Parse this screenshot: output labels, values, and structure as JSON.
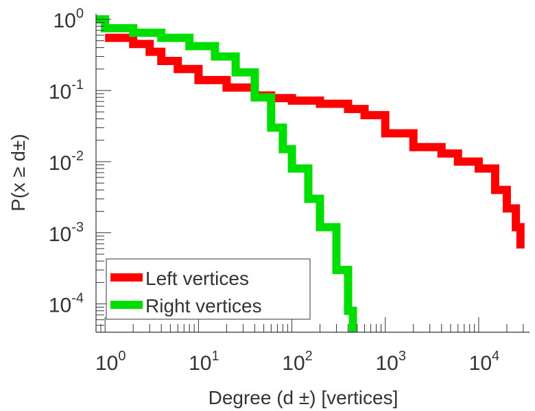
{
  "chart_data": {
    "type": "line",
    "xscale": "log",
    "yscale": "log",
    "xlim": [
      0.8,
      35000
    ],
    "ylim": [
      4e-05,
      1.2
    ],
    "xlabel": "Degree (d ±) [vertices]",
    "ylabel": "P(x ≥ d±)",
    "x_ticks": [
      {
        "value": 1,
        "base": "10",
        "exp": "0"
      },
      {
        "value": 10,
        "base": "10",
        "exp": "1"
      },
      {
        "value": 100,
        "base": "10",
        "exp": "2"
      },
      {
        "value": 1000,
        "base": "10",
        "exp": "3"
      },
      {
        "value": 10000,
        "base": "10",
        "exp": "4"
      }
    ],
    "y_ticks": [
      {
        "value": 1,
        "base": "10",
        "exp": "0"
      },
      {
        "value": 0.1,
        "base": "10",
        "exp": "-1"
      },
      {
        "value": 0.01,
        "base": "10",
        "exp": "-2"
      },
      {
        "value": 0.001,
        "base": "10",
        "exp": "-3"
      },
      {
        "value": 0.0001,
        "base": "10",
        "exp": "-4"
      }
    ],
    "legend_position": "bottom-left",
    "grid": false,
    "series": [
      {
        "name": "Left vertices",
        "color": "#ff0000",
        "x": [
          1,
          2,
          3,
          4,
          6,
          10,
          20,
          40,
          60,
          100,
          200,
          400,
          600,
          1000,
          2000,
          4000,
          6000,
          10000,
          15000,
          20000,
          25000,
          28000
        ],
        "y": [
          0.55,
          0.45,
          0.35,
          0.26,
          0.2,
          0.14,
          0.11,
          0.085,
          0.078,
          0.072,
          0.065,
          0.055,
          0.045,
          0.025,
          0.016,
          0.013,
          0.01,
          0.008,
          0.004,
          0.0022,
          0.0012,
          0.0006
        ]
      },
      {
        "name": "Right vertices",
        "color": "#00dd00",
        "x": [
          0.8,
          1,
          2,
          4,
          8,
          15,
          25,
          40,
          60,
          80,
          100,
          150,
          200,
          300,
          400,
          450
        ],
        "y": [
          1.0,
          0.75,
          0.65,
          0.55,
          0.42,
          0.3,
          0.18,
          0.08,
          0.03,
          0.015,
          0.008,
          0.003,
          0.0012,
          0.0003,
          8e-05,
          4e-05
        ]
      }
    ]
  }
}
